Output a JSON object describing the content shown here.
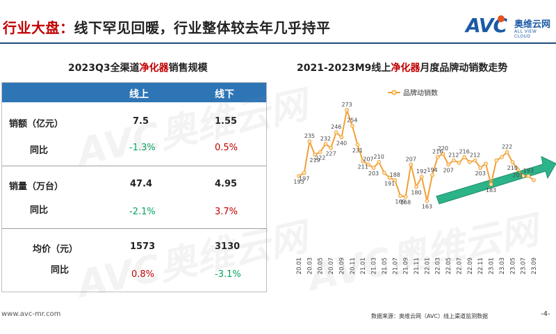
{
  "header": {
    "title_prefix": "行业大盘：",
    "title_rest": "线下罕见回暖，行业整体较去年几乎持平",
    "logo_text": "AVC",
    "logo_cn": "奥维云网",
    "logo_en": "ALL VIEW CLOUD"
  },
  "left_panel": {
    "title_prefix": "2023Q3全渠道",
    "title_highlight": "净化器",
    "title_suffix": "销售规模",
    "columns": [
      "线上",
      "线下"
    ],
    "rows": [
      {
        "label": "销额（亿元）",
        "online": "7.5",
        "offline": "1.55",
        "yoy_label": "同比",
        "online_yoy": "-1.3%",
        "offline_yoy": "0.5%"
      },
      {
        "label": "销量（万台）",
        "online": "47.4",
        "offline": "4.95",
        "yoy_label": "同比",
        "online_yoy": "-2.1%",
        "offline_yoy": "3.7%"
      },
      {
        "label": "均价（元）",
        "online": "1573",
        "offline": "3130",
        "yoy_label": "同比",
        "online_yoy": "0.8%",
        "offline_yoy": "-3.1%"
      }
    ]
  },
  "chart_data": {
    "type": "line",
    "title_prefix": "2021-2023M9线上",
    "title_highlight": "净化器",
    "title_suffix": "月度品牌动销数走势",
    "legend": "品牌动销数",
    "legend_position": "top",
    "series": [
      {
        "name": "品牌动销数",
        "values": [
          193,
          197,
          235,
          219,
          222,
          232,
          227,
          246,
          240,
          273,
          254,
          231,
          211,
          207,
          203,
          210,
          197,
          191,
          188,
          169,
          168,
          207,
          180,
          192,
          163,
          194,
          216,
          220,
          207,
          212,
          209,
          216,
          210,
          212,
          203,
          208,
          183,
          212,
          216,
          222,
          210,
          201,
          193,
          193,
          188
        ]
      }
    ],
    "x_tick_labels": [
      "20.01",
      "20.03",
      "20.05",
      "20.07",
      "20.09",
      "20.11",
      "21.01",
      "21.03",
      "21.05",
      "21.07",
      "21.09",
      "21.11",
      "22.01",
      "22.03",
      "22.05",
      "22.07",
      "22.09",
      "22.11",
      "23.01",
      "23.03",
      "23.05",
      "23.07",
      "23.09"
    ],
    "point_labels": [
      {
        "i": 0,
        "text": "193"
      },
      {
        "i": 1,
        "text": "197"
      },
      {
        "i": 2,
        "text": "235"
      },
      {
        "i": 3,
        "text": "219"
      },
      {
        "i": 4,
        "text": "222"
      },
      {
        "i": 5,
        "text": "232"
      },
      {
        "i": 6,
        "text": "227"
      },
      {
        "i": 7,
        "text": "246"
      },
      {
        "i": 8,
        "text": "240"
      },
      {
        "i": 9,
        "text": "273"
      },
      {
        "i": 10,
        "text": "254"
      },
      {
        "i": 11,
        "text": "231"
      },
      {
        "i": 12,
        "text": "211"
      },
      {
        "i": 13,
        "text": "207"
      },
      {
        "i": 14,
        "text": "203"
      },
      {
        "i": 15,
        "text": "210"
      },
      {
        "i": 17,
        "text": "191"
      },
      {
        "i": 18,
        "text": "188"
      },
      {
        "i": 19,
        "text": "169"
      },
      {
        "i": 20,
        "text": "168"
      },
      {
        "i": 21,
        "text": "207"
      },
      {
        "i": 22,
        "text": "180"
      },
      {
        "i": 23,
        "text": "192"
      },
      {
        "i": 24,
        "text": "163"
      },
      {
        "i": 25,
        "text": "194"
      },
      {
        "i": 26,
        "text": "216"
      },
      {
        "i": 27,
        "text": "220"
      },
      {
        "i": 28,
        "text": "207"
      },
      {
        "i": 29,
        "text": "212"
      },
      {
        "i": 31,
        "text": "216"
      },
      {
        "i": 33,
        "text": "212"
      },
      {
        "i": 34,
        "text": "203"
      },
      {
        "i": 36,
        "text": "183"
      },
      {
        "i": 39,
        "text": "222"
      },
      {
        "i": 40,
        "text": "210"
      },
      {
        "i": 41,
        "text": "201"
      },
      {
        "i": 43,
        "text": "193"
      }
    ],
    "ylim": [
      150,
      290
    ],
    "grid": false,
    "colors": {
      "line": "#f0a035",
      "marker_fill": "#fde4b8",
      "trend_arrow": "#2db38a",
      "positive": "#c00000",
      "negative": "#00a65a",
      "header_bg": "#2e75b6"
    }
  },
  "footer": {
    "website": "www.avc-mr.com",
    "source": "数据来源：奥维云网（AVC）线上渠道监测数据",
    "page": "-4-"
  }
}
